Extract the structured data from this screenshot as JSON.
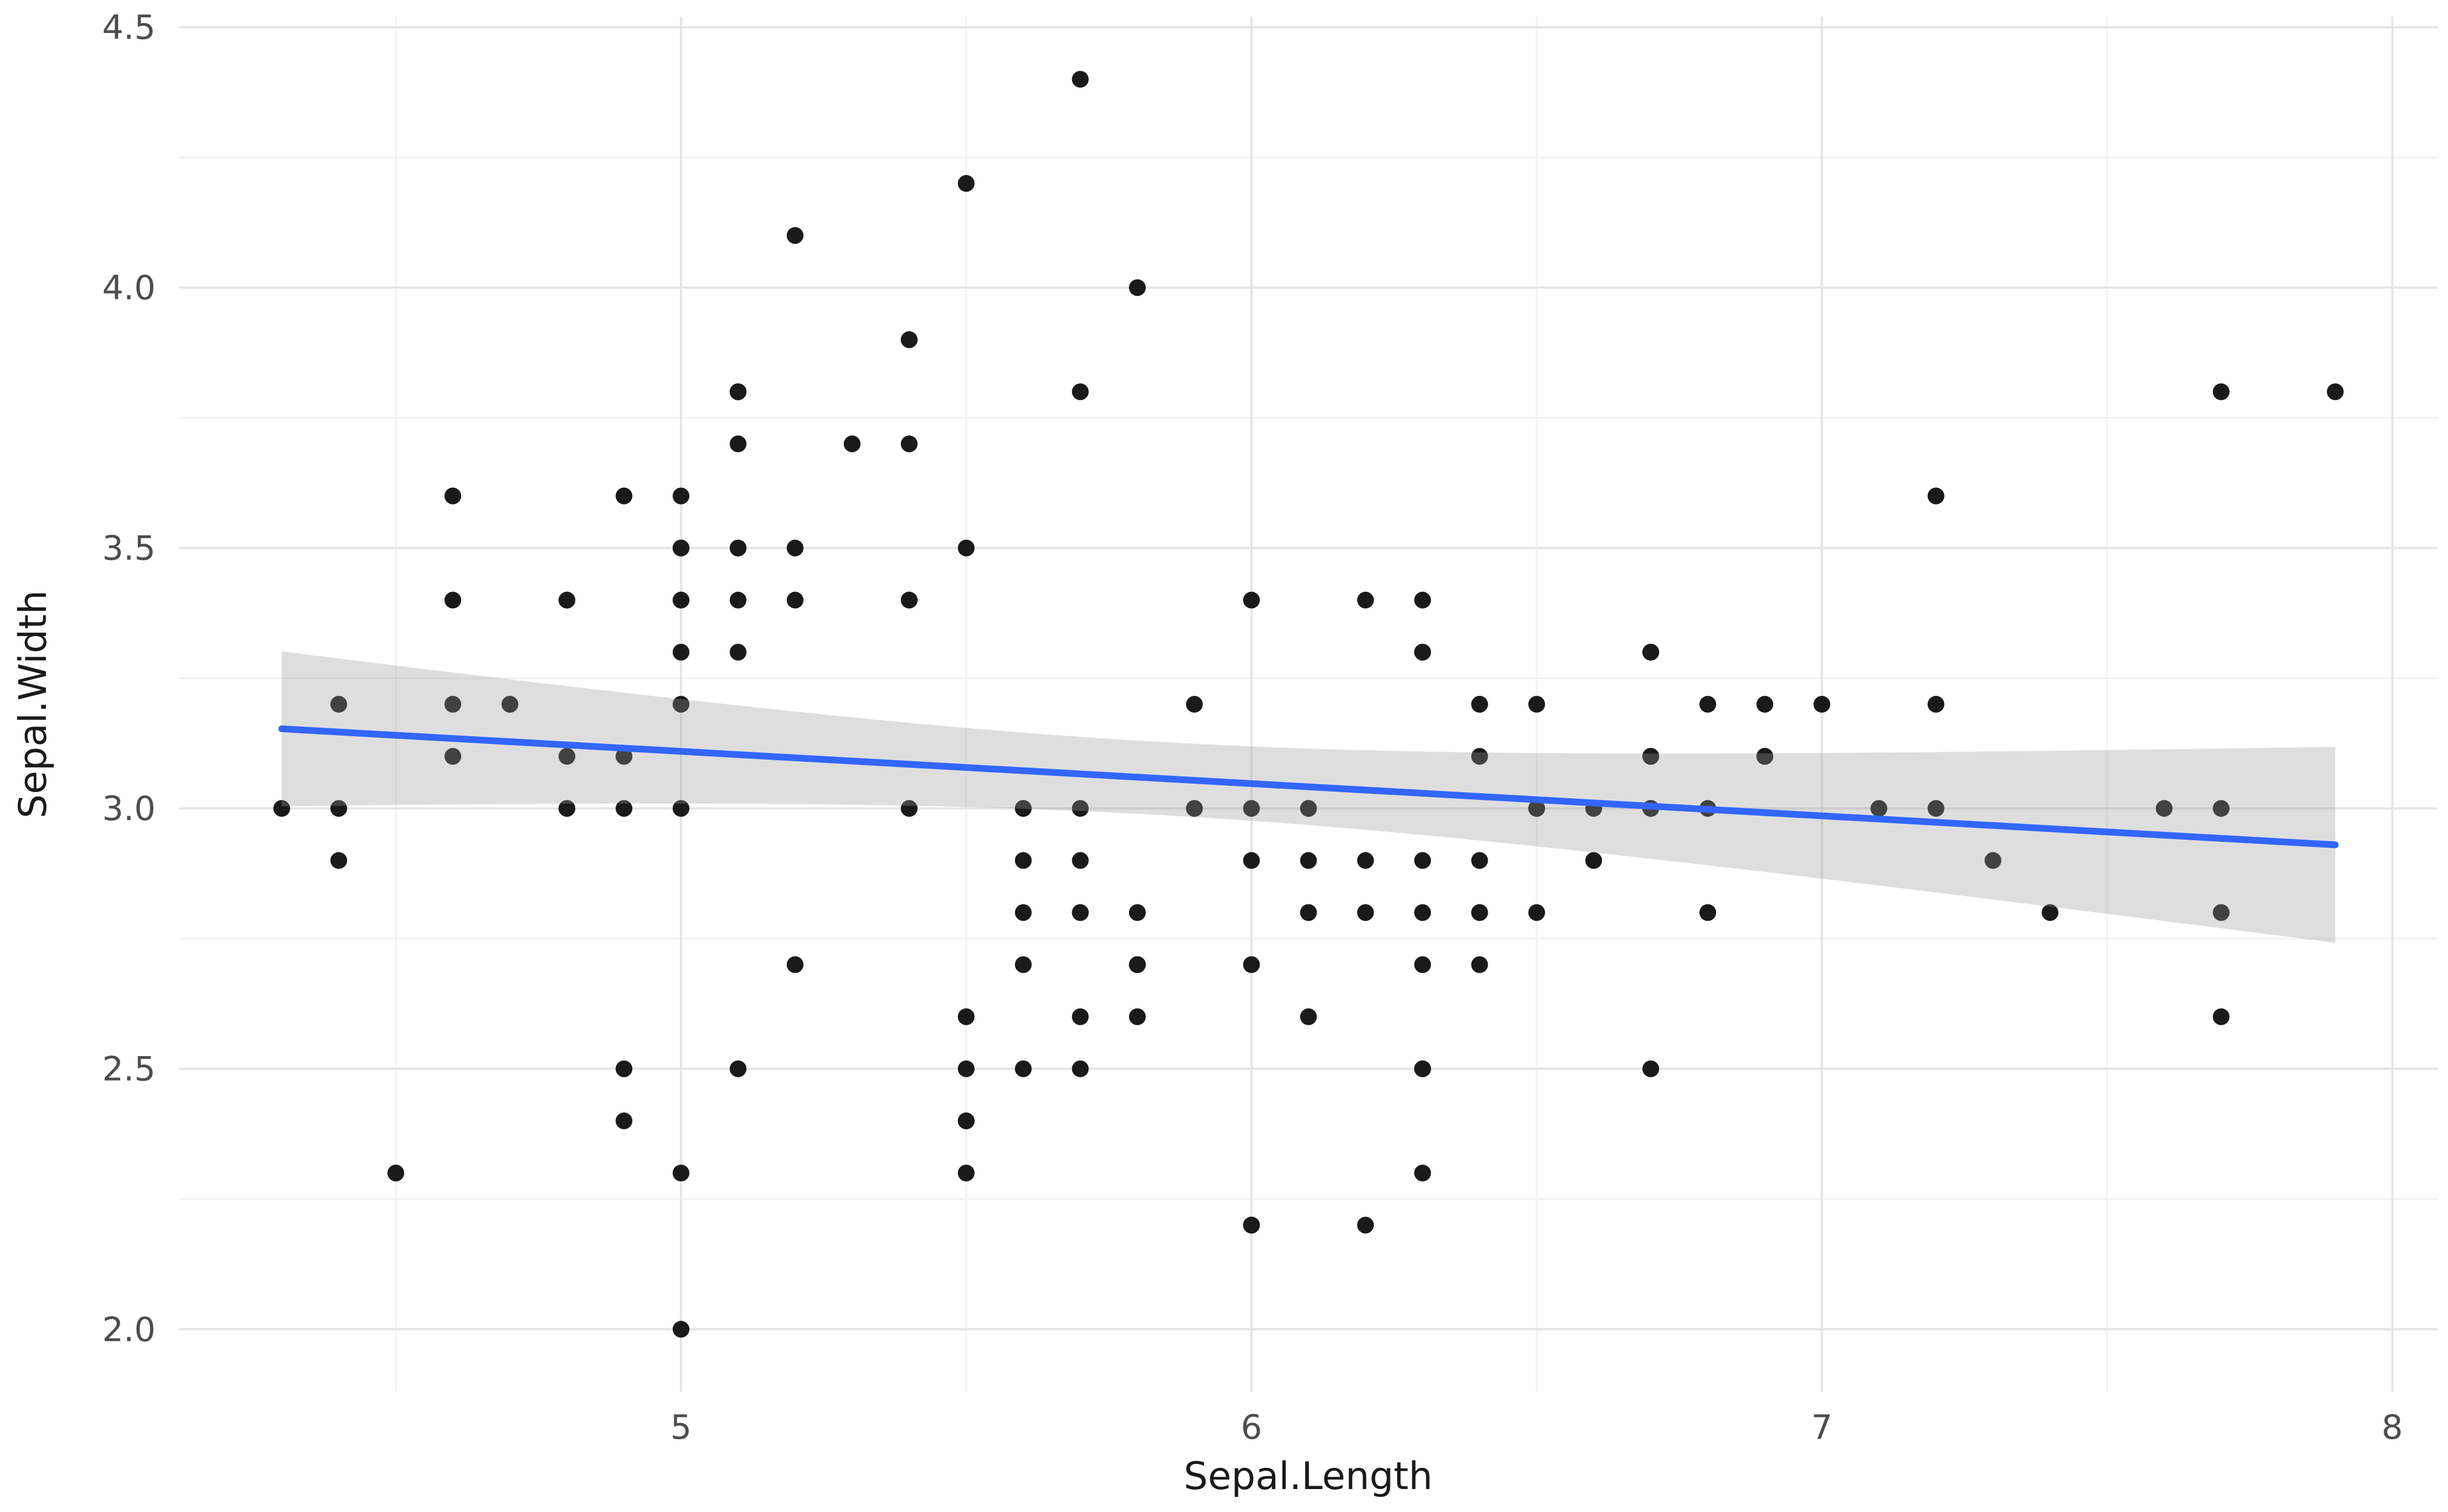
{
  "chart_data": {
    "type": "scatter",
    "title": "",
    "xlabel": "Sepal.Length",
    "ylabel": "Sepal.Width",
    "xlim": [
      4.12,
      8.08
    ],
    "ylim": [
      1.88,
      4.52
    ],
    "x_ticks": [
      5,
      6,
      7,
      8
    ],
    "x_tick_labels": [
      "5",
      "6",
      "7",
      "8"
    ],
    "y_ticks": [
      2.0,
      2.5,
      3.0,
      3.5,
      4.0,
      4.5
    ],
    "y_tick_labels": [
      "2.0",
      "2.5",
      "3.0",
      "3.5",
      "4.0",
      "4.5"
    ],
    "x_minor_ticks": [
      4.5,
      5.5,
      6.5,
      7.5
    ],
    "y_minor_ticks": [
      2.25,
      2.75,
      3.25,
      3.75,
      4.25
    ],
    "grid": true,
    "legend": "none",
    "smooth": {
      "method": "lm",
      "ci_level": 0.95,
      "x_range": [
        4.3,
        7.9
      ]
    },
    "style": {
      "background": "#FFFFFF",
      "point_color": "#1A1A1A",
      "line_color": "#3366FF",
      "ci_fill": "#999999",
      "ci_alpha": 0.32,
      "grid_major": "#E5E5E5",
      "grid_minor": "#F2F2F2",
      "tick_color": "#4D4D4D",
      "title_color": "#1A1A1A"
    },
    "points": [
      [
        5.1,
        3.5
      ],
      [
        4.9,
        3.0
      ],
      [
        4.7,
        3.2
      ],
      [
        4.6,
        3.1
      ],
      [
        5.0,
        3.6
      ],
      [
        5.4,
        3.9
      ],
      [
        4.6,
        3.4
      ],
      [
        5.0,
        3.4
      ],
      [
        4.4,
        2.9
      ],
      [
        4.9,
        3.1
      ],
      [
        5.4,
        3.7
      ],
      [
        4.8,
        3.4
      ],
      [
        4.8,
        3.0
      ],
      [
        4.3,
        3.0
      ],
      [
        5.8,
        4.0
      ],
      [
        5.7,
        4.4
      ],
      [
        5.4,
        3.9
      ],
      [
        5.1,
        3.5
      ],
      [
        5.7,
        3.8
      ],
      [
        5.1,
        3.8
      ],
      [
        5.4,
        3.4
      ],
      [
        5.1,
        3.7
      ],
      [
        4.6,
        3.6
      ],
      [
        5.1,
        3.3
      ],
      [
        4.8,
        3.4
      ],
      [
        5.0,
        3.0
      ],
      [
        5.0,
        3.4
      ],
      [
        5.2,
        3.5
      ],
      [
        5.2,
        3.4
      ],
      [
        4.7,
        3.2
      ],
      [
        4.8,
        3.1
      ],
      [
        5.4,
        3.4
      ],
      [
        5.2,
        4.1
      ],
      [
        5.5,
        4.2
      ],
      [
        4.9,
        3.1
      ],
      [
        5.0,
        3.2
      ],
      [
        5.5,
        3.5
      ],
      [
        4.9,
        3.6
      ],
      [
        4.4,
        3.0
      ],
      [
        5.1,
        3.4
      ],
      [
        5.0,
        3.5
      ],
      [
        4.5,
        2.3
      ],
      [
        4.4,
        3.2
      ],
      [
        5.0,
        3.5
      ],
      [
        5.1,
        3.8
      ],
      [
        4.8,
        3.0
      ],
      [
        5.1,
        3.8
      ],
      [
        4.6,
        3.2
      ],
      [
        5.3,
        3.7
      ],
      [
        5.0,
        3.3
      ],
      [
        7.0,
        3.2
      ],
      [
        6.4,
        3.2
      ],
      [
        6.9,
        3.1
      ],
      [
        5.5,
        2.3
      ],
      [
        6.5,
        2.8
      ],
      [
        5.7,
        2.8
      ],
      [
        6.3,
        3.3
      ],
      [
        4.9,
        2.4
      ],
      [
        6.6,
        2.9
      ],
      [
        5.2,
        2.7
      ],
      [
        5.0,
        2.0
      ],
      [
        5.9,
        3.0
      ],
      [
        6.0,
        2.2
      ],
      [
        6.1,
        2.9
      ],
      [
        5.6,
        2.9
      ],
      [
        6.7,
        3.1
      ],
      [
        5.6,
        3.0
      ],
      [
        5.8,
        2.7
      ],
      [
        6.2,
        2.2
      ],
      [
        5.6,
        2.5
      ],
      [
        5.9,
        3.2
      ],
      [
        6.1,
        2.8
      ],
      [
        6.3,
        2.5
      ],
      [
        6.1,
        2.8
      ],
      [
        6.4,
        2.9
      ],
      [
        6.6,
        3.0
      ],
      [
        6.8,
        2.8
      ],
      [
        6.7,
        3.0
      ],
      [
        6.0,
        2.9
      ],
      [
        5.7,
        2.6
      ],
      [
        5.5,
        2.4
      ],
      [
        5.5,
        2.4
      ],
      [
        5.8,
        2.7
      ],
      [
        6.0,
        2.7
      ],
      [
        5.4,
        3.0
      ],
      [
        6.0,
        3.4
      ],
      [
        6.7,
        3.1
      ],
      [
        6.3,
        2.3
      ],
      [
        5.6,
        3.0
      ],
      [
        5.5,
        2.5
      ],
      [
        5.5,
        2.6
      ],
      [
        6.1,
        3.0
      ],
      [
        5.8,
        2.6
      ],
      [
        5.0,
        2.3
      ],
      [
        5.6,
        2.7
      ],
      [
        5.7,
        3.0
      ],
      [
        5.7,
        2.9
      ],
      [
        6.2,
        2.9
      ],
      [
        5.1,
        2.5
      ],
      [
        5.7,
        2.8
      ],
      [
        6.3,
        3.3
      ],
      [
        5.8,
        2.7
      ],
      [
        7.1,
        3.0
      ],
      [
        6.3,
        2.9
      ],
      [
        6.5,
        3.0
      ],
      [
        7.6,
        3.0
      ],
      [
        4.9,
        2.5
      ],
      [
        7.3,
        2.9
      ],
      [
        6.7,
        2.5
      ],
      [
        7.2,
        3.6
      ],
      [
        6.5,
        3.2
      ],
      [
        6.4,
        2.7
      ],
      [
        6.8,
        3.0
      ],
      [
        5.7,
        2.5
      ],
      [
        5.8,
        2.8
      ],
      [
        6.4,
        3.2
      ],
      [
        6.5,
        3.0
      ],
      [
        7.7,
        3.8
      ],
      [
        7.7,
        2.6
      ],
      [
        6.0,
        2.2
      ],
      [
        6.9,
        3.2
      ],
      [
        5.6,
        2.8
      ],
      [
        7.7,
        2.8
      ],
      [
        6.3,
        2.7
      ],
      [
        6.7,
        3.3
      ],
      [
        7.2,
        3.2
      ],
      [
        6.2,
        2.8
      ],
      [
        6.1,
        3.0
      ],
      [
        6.4,
        2.8
      ],
      [
        7.2,
        3.0
      ],
      [
        7.4,
        2.8
      ],
      [
        7.9,
        3.8
      ],
      [
        6.4,
        2.8
      ],
      [
        6.3,
        2.8
      ],
      [
        6.1,
        2.6
      ],
      [
        7.7,
        3.0
      ],
      [
        6.3,
        3.4
      ],
      [
        6.4,
        3.1
      ],
      [
        6.0,
        3.0
      ],
      [
        6.9,
        3.1
      ],
      [
        6.7,
        3.1
      ],
      [
        6.9,
        3.1
      ],
      [
        5.8,
        2.7
      ],
      [
        6.8,
        3.2
      ],
      [
        6.7,
        3.3
      ],
      [
        6.7,
        3.0
      ],
      [
        6.3,
        2.5
      ],
      [
        6.5,
        3.0
      ],
      [
        6.2,
        3.4
      ],
      [
        5.9,
        3.0
      ]
    ]
  }
}
